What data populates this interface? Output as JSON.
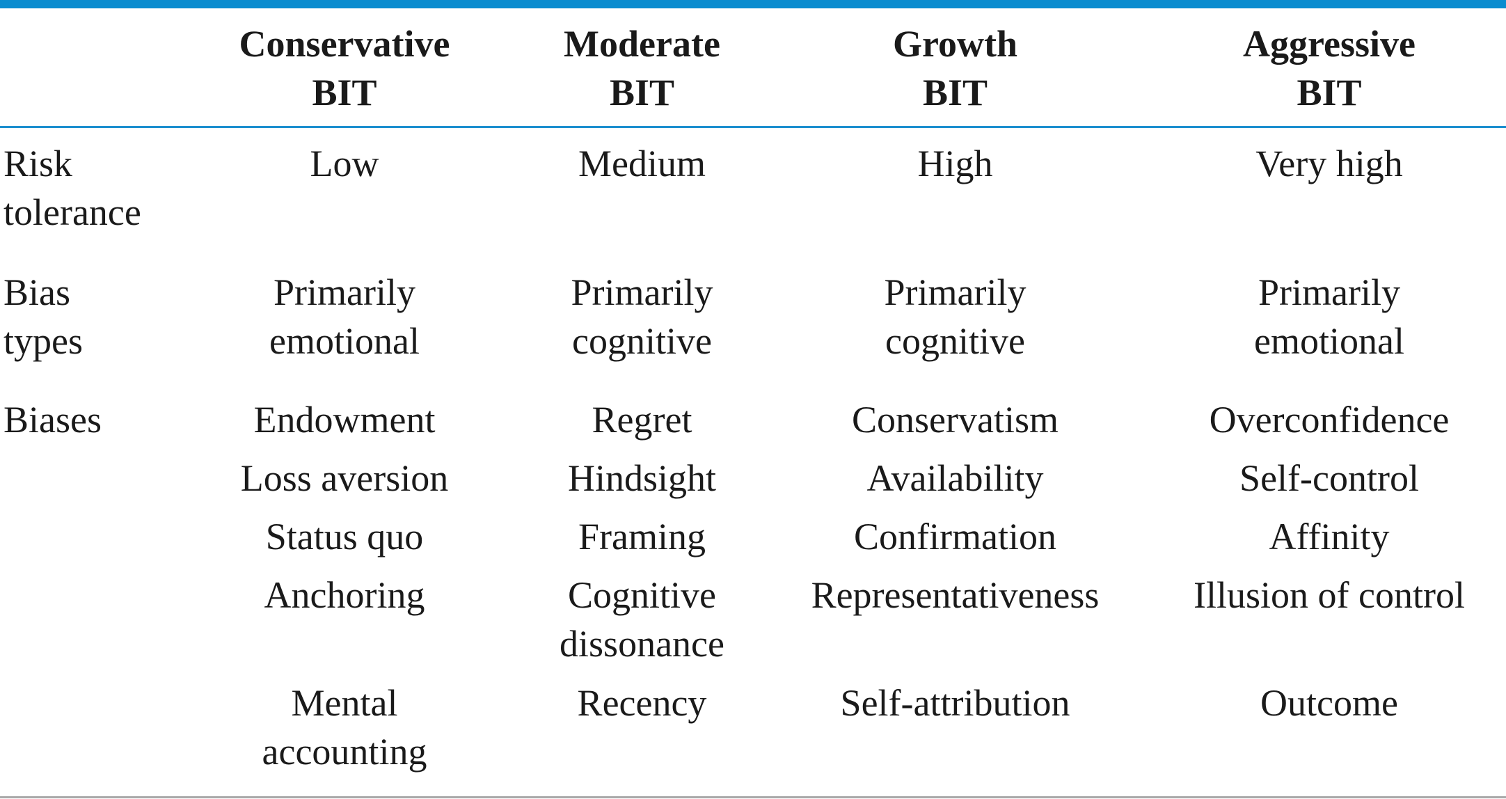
{
  "table": {
    "headers": [
      {
        "line1": "Conservative",
        "line2": "BIT"
      },
      {
        "line1": "Moderate",
        "line2": "BIT"
      },
      {
        "line1": "Growth",
        "line2": "BIT"
      },
      {
        "line1": "Aggressive",
        "line2": "BIT"
      }
    ],
    "risk": {
      "label_line1": "Risk",
      "label_line2": "tolerance",
      "values": [
        "Low",
        "Medium",
        "High",
        "Very high"
      ]
    },
    "bias_types": {
      "label_line1": "Bias",
      "label_line2": "types",
      "values": [
        {
          "line1": "Primarily",
          "line2": "emotional"
        },
        {
          "line1": "Primarily",
          "line2": "cognitive"
        },
        {
          "line1": "Primarily",
          "line2": "cognitive"
        },
        {
          "line1": "Primarily",
          "line2": "emotional"
        }
      ]
    },
    "biases": {
      "label": "Biases",
      "rows": [
        [
          "Endowment",
          "Regret",
          "Conservatism",
          "Overconfidence"
        ],
        [
          "Loss aversion",
          "Hindsight",
          "Availability",
          "Self-control"
        ],
        [
          "Status quo",
          "Framing",
          "Confirmation",
          "Affinity"
        ],
        [
          "Anchoring",
          "Cognitive",
          "Representativeness",
          "Illusion of control"
        ],
        [
          "",
          "dissonance",
          "",
          ""
        ],
        [
          "Mental",
          "Recency",
          "Self-attribution",
          "Outcome"
        ],
        [
          "accounting",
          "",
          "",
          ""
        ]
      ]
    }
  },
  "colors": {
    "accent_rule": "#0a8ccf",
    "header_rule": "#1d8fcf",
    "bottom_rule": "#a9a9a9",
    "text": "#1a1a1a"
  }
}
